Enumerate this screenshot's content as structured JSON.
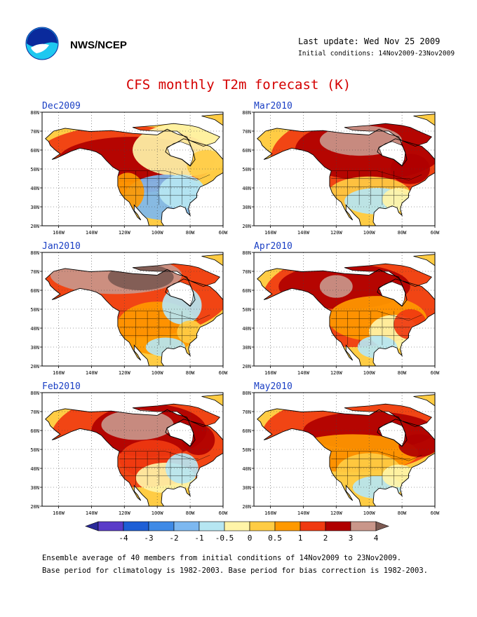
{
  "header": {
    "org": "NWS/NCEP",
    "last_update": "Last update: Wed Nov 25 2009",
    "initial_conditions": "Initial conditions: 14Nov2009-23Nov2009"
  },
  "title": "CFS monthly T2m forecast (K)",
  "panels": [
    {
      "label": "Dec2009"
    },
    {
      "label": "Mar2010"
    },
    {
      "label": "Jan2010"
    },
    {
      "label": "Apr2010"
    },
    {
      "label": "Feb2010"
    },
    {
      "label": "May2010"
    }
  ],
  "axes": {
    "lat_labels": [
      "80N",
      "70N",
      "60N",
      "50N",
      "40N",
      "30N",
      "20N"
    ],
    "lon_labels": [
      "160W",
      "140W",
      "120W",
      "100W",
      "80W",
      "60W"
    ]
  },
  "colorbar": {
    "colors": [
      "#2a2a9a",
      "#5a3cc8",
      "#1e5fd6",
      "#3f8ae6",
      "#7db8f0",
      "#b6e6f2",
      "#fff4a8",
      "#ffcc44",
      "#ff9900",
      "#f03a10",
      "#b00000",
      "#c9968a",
      "#7d5a52"
    ],
    "labels": [
      "-4",
      "-3",
      "-2",
      "-1",
      "-0.5",
      "0",
      "0.5",
      "1",
      "2",
      "3",
      "4"
    ]
  },
  "footer": {
    "line1": "Ensemble average of 40 members from initial conditions of 14Nov2009 to 23Nov2009.",
    "line2": "Base period for climatology is 1982-2003. Base period for bias correction is 1982-2003."
  }
}
